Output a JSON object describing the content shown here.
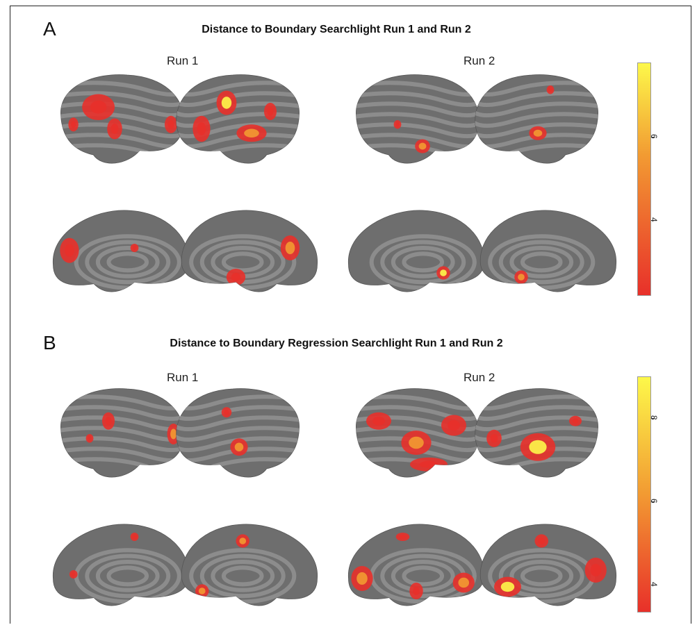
{
  "panels": [
    {
      "letter": "A",
      "title": "Distance to Boundary Searchlight Run 1 and Run 2",
      "runs": [
        "Run 1",
        "Run 2"
      ],
      "colorbar": {
        "ticks": [
          "6",
          "4"
        ],
        "min": 2.2,
        "max": 7.8,
        "tick_values": [
          6,
          4
        ]
      }
    },
    {
      "letter": "B",
      "title": "Distance to Boundary Regression Searchlight Run 1 and Run 2",
      "runs": [
        "Run 1",
        "Run 2"
      ],
      "colorbar": {
        "ticks": [
          "8",
          "6",
          "4"
        ],
        "min": 3.3,
        "max": 9.0,
        "tick_values": [
          8,
          6,
          4
        ]
      }
    }
  ],
  "colors": {
    "low": "#e8302a",
    "mid": "#f29a32",
    "high": "#fdf84a",
    "cortex": "#6e6e6e",
    "sulci": "#8c8c8c"
  }
}
